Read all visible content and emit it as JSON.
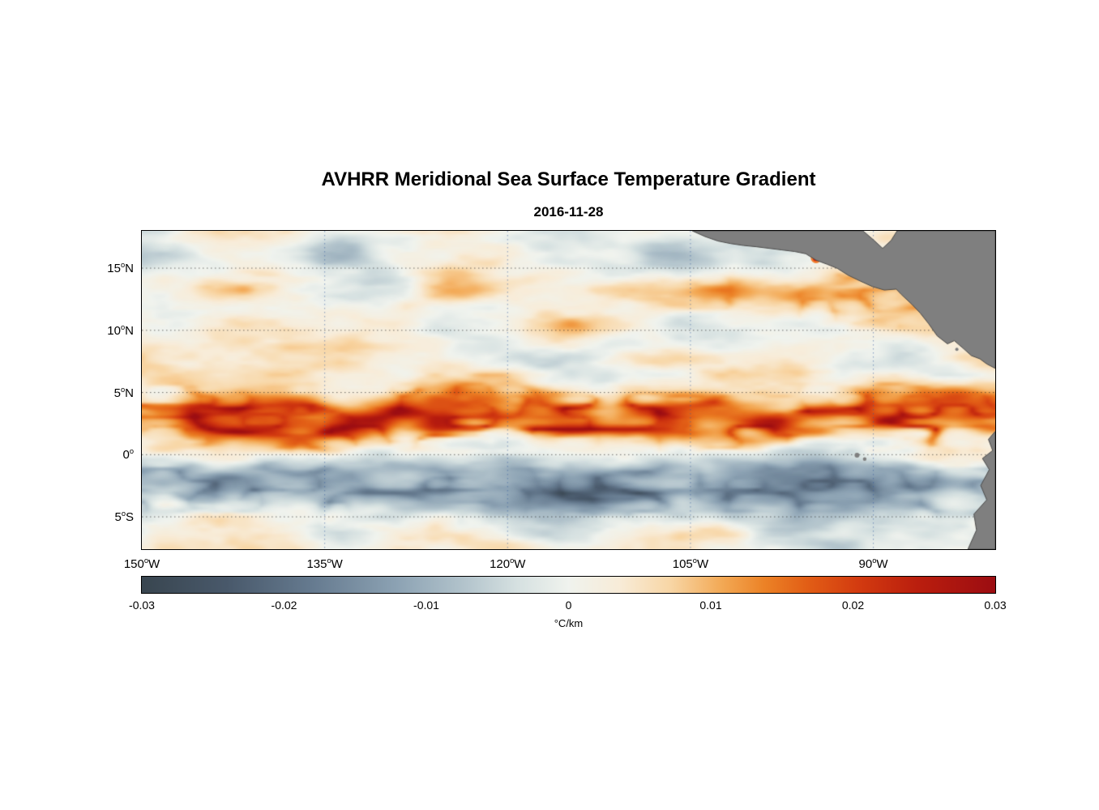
{
  "title": "AVHRR Meridional Sea Surface Temperature Gradient",
  "subtitle": "2016-11-28",
  "chart_data": {
    "type": "heatmap",
    "title": "AVHRR Meridional Sea Surface Temperature Gradient",
    "subtitle": "2016-11-28",
    "units": "°C/km",
    "field_summary": "Turbulent meridional SST gradient field over the eastern tropical Pacific: strong positive (orange/red) filaments along the 0-8N tropical instability wave front, a broad negative (dark blue-gray) band just south of the equator, orange/red arcs near the Central American coast between 8N and 15N, and a pale near-zero background elsewhere. Gray land of Mexico/Central America fills the top-right corner and the South American coast the bottom-right corner; small gray Galapagos islets sit near 0, 90W; an intense red hotspot sits in the Gulf of Tehuantepec.",
    "x_axis": {
      "range_lon": [
        -150,
        -80
      ],
      "ticks": [
        {
          "value": -150,
          "label": "150°W"
        },
        {
          "value": -135,
          "label": "135°W"
        },
        {
          "value": -120,
          "label": "120°W"
        },
        {
          "value": -105,
          "label": "105°W"
        },
        {
          "value": -90,
          "label": "90°W"
        }
      ]
    },
    "y_axis": {
      "range_lat": [
        -7.6,
        18.0
      ],
      "ticks": [
        {
          "value": 15,
          "label": "15°N"
        },
        {
          "value": 10,
          "label": "10°N"
        },
        {
          "value": 5,
          "label": "5°N"
        },
        {
          "value": 0,
          "label": "0°"
        },
        {
          "value": -5,
          "label": "5°S"
        }
      ]
    },
    "colorbar": {
      "label": "°C/km",
      "range": [
        -0.03,
        0.03
      ],
      "tick_values": [
        -0.03,
        -0.02,
        -0.01,
        0,
        0.01,
        0.02,
        0.03
      ],
      "tick_labels": [
        "-0.03",
        "-0.02",
        "-0.01",
        "0",
        "0.01",
        "0.02",
        "0.03"
      ],
      "stops": [
        [
          0.0,
          "#394650"
        ],
        [
          0.1,
          "#49596b"
        ],
        [
          0.2,
          "#667b90"
        ],
        [
          0.3,
          "#8da3b4"
        ],
        [
          0.38,
          "#b4c5cd"
        ],
        [
          0.44,
          "#d6e1e1"
        ],
        [
          0.5,
          "#f0f3ee"
        ],
        [
          0.56,
          "#f8ecd8"
        ],
        [
          0.62,
          "#f8d6a5"
        ],
        [
          0.68,
          "#f3a955"
        ],
        [
          0.73,
          "#ec8226"
        ],
        [
          0.78,
          "#e25e16"
        ],
        [
          0.84,
          "#d33b10"
        ],
        [
          0.91,
          "#ba1e0e"
        ],
        [
          1.0,
          "#9c0d12"
        ]
      ]
    },
    "grid": {
      "h_color": "rgba(40,40,40,0.65)",
      "v_color": "rgba(55,95,160,0.60)"
    },
    "hotspots": [
      {
        "fx": 0.79,
        "fy": 0.085,
        "r": 4,
        "color": "#d92408",
        "halo": "#f08030"
      }
    ],
    "land": {
      "color": "#7f7f7f",
      "edge": "#4a4a4a",
      "polygons": {
        "central_america": [
          [
            0.645,
            0.0
          ],
          [
            0.66,
            0.018
          ],
          [
            0.675,
            0.032
          ],
          [
            0.69,
            0.04
          ],
          [
            0.705,
            0.046
          ],
          [
            0.72,
            0.05
          ],
          [
            0.735,
            0.055
          ],
          [
            0.75,
            0.06
          ],
          [
            0.765,
            0.065
          ],
          [
            0.778,
            0.072
          ],
          [
            0.79,
            0.092
          ],
          [
            0.803,
            0.105
          ],
          [
            0.815,
            0.118
          ],
          [
            0.828,
            0.14
          ],
          [
            0.842,
            0.158
          ],
          [
            0.856,
            0.175
          ],
          [
            0.87,
            0.186
          ],
          [
            0.884,
            0.183
          ],
          [
            0.89,
            0.2
          ],
          [
            0.902,
            0.23
          ],
          [
            0.912,
            0.258
          ],
          [
            0.922,
            0.292
          ],
          [
            0.932,
            0.33
          ],
          [
            0.944,
            0.355
          ],
          [
            0.952,
            0.345
          ],
          [
            0.962,
            0.368
          ],
          [
            0.972,
            0.392
          ],
          [
            0.982,
            0.402
          ],
          [
            0.99,
            0.418
          ],
          [
            1.0,
            0.432
          ],
          [
            1.0,
            0.0
          ],
          [
            0.885,
            0.0
          ],
          [
            0.878,
            0.03
          ],
          [
            0.868,
            0.055
          ],
          [
            0.858,
            0.03
          ],
          [
            0.845,
            0.0
          ]
        ],
        "south_america": [
          [
            1.0,
            0.63
          ],
          [
            0.992,
            0.655
          ],
          [
            0.997,
            0.69
          ],
          [
            0.985,
            0.715
          ],
          [
            0.993,
            0.75
          ],
          [
            0.983,
            0.8
          ],
          [
            0.99,
            0.845
          ],
          [
            0.975,
            0.89
          ],
          [
            0.978,
            0.94
          ],
          [
            0.968,
            1.0
          ],
          [
            1.0,
            1.0
          ]
        ]
      },
      "islands": [
        [
          0.838,
          0.705,
          3.0
        ],
        [
          0.847,
          0.717,
          2.2
        ],
        [
          0.955,
          0.372,
          2.0
        ]
      ]
    },
    "field_model": {
      "noise_seed": 58.53,
      "positive_band": {
        "center_lat": 2.8,
        "sigma": 2.1,
        "amplitude": 0.0105
      },
      "negative_band": {
        "center_lat": -2.7,
        "sigma": 2.3,
        "amplitude": -0.0078
      },
      "northeast_coastal_band": {
        "center_lat": 12.5,
        "sigma": 2.8,
        "amplitude": 0.0045
      },
      "background_noise_amplitude": 0.012,
      "filament_amplitude_positive": 0.02,
      "filament_amplitude_negative": -0.014
    }
  }
}
